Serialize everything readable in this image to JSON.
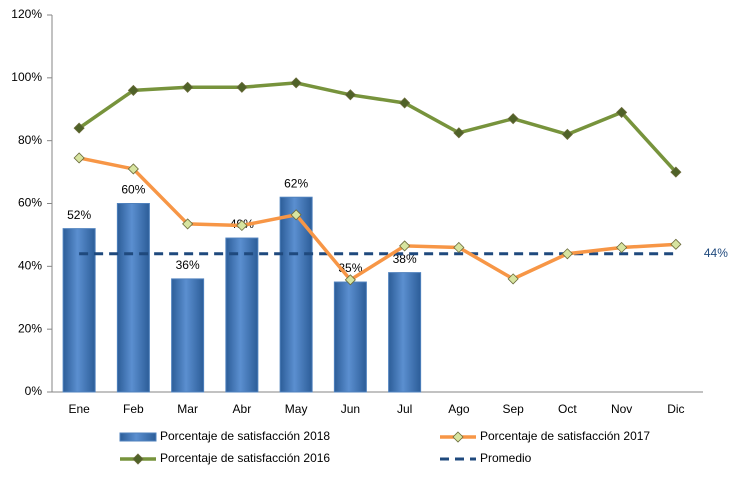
{
  "chart_data": {
    "type": "bar_line",
    "categories": [
      "Ene",
      "Feb",
      "Mar",
      "Abr",
      "May",
      "Jun",
      "Jul",
      "Ago",
      "Sep",
      "Oct",
      "Nov",
      "Dic"
    ],
    "ylim": [
      0,
      120
    ],
    "yticks": [
      {
        "value": 0,
        "label": "0%"
      },
      {
        "value": 20,
        "label": "20%"
      },
      {
        "value": 40,
        "label": "40%"
      },
      {
        "value": 60,
        "label": "60%"
      },
      {
        "value": 80,
        "label": "80%"
      },
      {
        "value": 100,
        "label": "100%"
      },
      {
        "value": 120,
        "label": "120%"
      }
    ],
    "grid": false,
    "series": [
      {
        "name": "Porcentaje de satisfacción 2018",
        "type": "bar",
        "color": "#4f81bd",
        "values": [
          52,
          60,
          36,
          49,
          62,
          35,
          38,
          null,
          null,
          null,
          null,
          null
        ],
        "value_labels": [
          "52%",
          "60%",
          "36%",
          "49%",
          "62%",
          "35%",
          "38%",
          null,
          null,
          null,
          null,
          null
        ]
      },
      {
        "name": "Porcentaje de satisfacción 2017",
        "type": "line",
        "color": "#f79646",
        "marker_color": "#d7e4a0",
        "values": [
          74.5,
          71,
          53.5,
          53,
          56.4,
          35.7,
          46.5,
          46,
          36,
          44,
          46,
          47
        ]
      },
      {
        "name": "Porcentaje de satisfacción 2016",
        "type": "line",
        "color": "#77933c",
        "marker_color": "#4f6228",
        "values": [
          84,
          96,
          97,
          97,
          98.4,
          94.6,
          92,
          82.5,
          87,
          82,
          89,
          70
        ]
      },
      {
        "name": "Promedio",
        "type": "dashed",
        "color": "#1f497d",
        "values": [
          44,
          44,
          44,
          44,
          44,
          44,
          44,
          44,
          44,
          44,
          44,
          44
        ],
        "end_label": "44%"
      }
    ]
  }
}
